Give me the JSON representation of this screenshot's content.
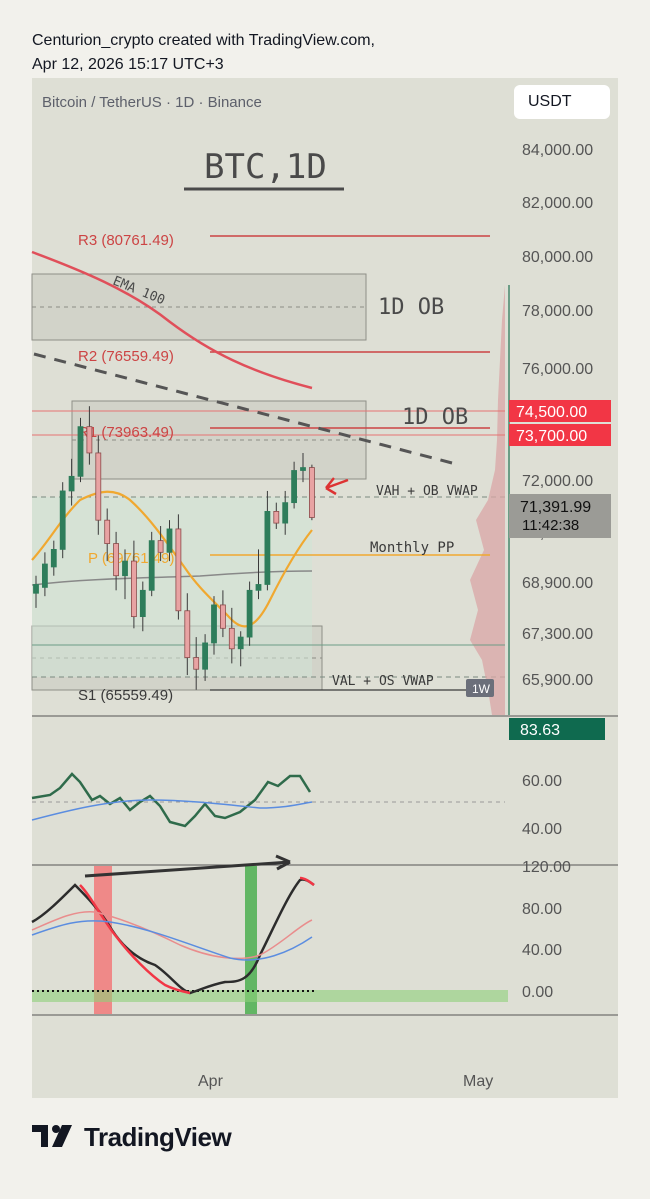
{
  "header": {
    "line1": "Centurion_crypto created with TradingView.com,",
    "line2": "Apr 12, 2026 15:17 UTC+3"
  },
  "symbol": {
    "title": "Bitcoin / TetherUS · 1D · Binance",
    "currency_button": "USDT"
  },
  "annotations": {
    "chart_title": "BTC,1D",
    "ob_upper": "1D OB",
    "ob_lower": "1D OB",
    "ema_label": "EMA 100",
    "vah_label": "VAH + OB VWAP",
    "monthly_pp": "Monthly PP",
    "val_label": "VAL + OS VWAP",
    "tf_badge": "1W"
  },
  "pivots": {
    "r3": "R3 (80761.49)",
    "r2": "R2 (76559.49)",
    "r1": "R1 (73963.49)",
    "p": "P (69761.49)",
    "s1": "S1 (65559.49)"
  },
  "price_labels": {
    "ob_top": "74,500.00",
    "ob_mid": "73,700.00",
    "last_price": "71,391.99",
    "countdown": "11:42:38",
    "rsi_value": "83.63"
  },
  "colors": {
    "bull": "#2e7d5b",
    "bear": "#e8a3a3",
    "ema100": "#e04f5a",
    "ema_short": "#f0a830",
    "pivot": "#cc4444",
    "accent_red": "#f23645",
    "accent_green": "#0f6a4f",
    "rsi": "#2f6b4b",
    "rsi_ma": "#5b8de0"
  },
  "axis": {
    "price_ticks": [
      "84,000.00",
      "82,000.00",
      "80,000.00",
      "78,000.00",
      "76,000.00",
      "72,000.00",
      "70,000.00",
      "68,900.00",
      "67,300.00",
      "65,900.00"
    ],
    "rsi_ticks": [
      "60.00",
      "40.00"
    ],
    "stoch_ticks": [
      "120.00",
      "80.00",
      "40.00",
      "0.00"
    ],
    "x_ticks": [
      "Apr",
      "May"
    ]
  },
  "footer": {
    "brand": "TradingView"
  },
  "chart_data": {
    "type": "candlestick",
    "title": "BTC,1D",
    "ylim": [
      65000,
      85000
    ],
    "candles": [
      {
        "o": 68800,
        "h": 69400,
        "l": 68300,
        "c": 69100
      },
      {
        "o": 69000,
        "h": 70200,
        "l": 68700,
        "c": 69800
      },
      {
        "o": 69700,
        "h": 70600,
        "l": 69400,
        "c": 70300
      },
      {
        "o": 70300,
        "h": 72600,
        "l": 70000,
        "c": 72300
      },
      {
        "o": 72300,
        "h": 73400,
        "l": 71800,
        "c": 72800
      },
      {
        "o": 72800,
        "h": 74800,
        "l": 72600,
        "c": 74500
      },
      {
        "o": 74500,
        "h": 75200,
        "l": 73200,
        "c": 73600
      },
      {
        "o": 73600,
        "h": 74200,
        "l": 70800,
        "c": 71300
      },
      {
        "o": 71300,
        "h": 71700,
        "l": 69900,
        "c": 70500
      },
      {
        "o": 70500,
        "h": 70900,
        "l": 68900,
        "c": 69400
      },
      {
        "o": 69400,
        "h": 70300,
        "l": 68600,
        "c": 69900
      },
      {
        "o": 69900,
        "h": 70600,
        "l": 67600,
        "c": 68000
      },
      {
        "o": 68000,
        "h": 69200,
        "l": 67500,
        "c": 68900
      },
      {
        "o": 68900,
        "h": 70900,
        "l": 68700,
        "c": 70600
      },
      {
        "o": 70600,
        "h": 71100,
        "l": 69900,
        "c": 70200
      },
      {
        "o": 70200,
        "h": 71300,
        "l": 69900,
        "c": 71000
      },
      {
        "o": 71000,
        "h": 71500,
        "l": 67900,
        "c": 68200
      },
      {
        "o": 68200,
        "h": 68800,
        "l": 66000,
        "c": 66600
      },
      {
        "o": 66600,
        "h": 67300,
        "l": 65500,
        "c": 66200
      },
      {
        "o": 66200,
        "h": 67400,
        "l": 65800,
        "c": 67100
      },
      {
        "o": 67100,
        "h": 68700,
        "l": 66700,
        "c": 68400
      },
      {
        "o": 68400,
        "h": 68900,
        "l": 67300,
        "c": 67600
      },
      {
        "o": 67600,
        "h": 68300,
        "l": 66400,
        "c": 66900
      },
      {
        "o": 66900,
        "h": 67500,
        "l": 66300,
        "c": 67300
      },
      {
        "o": 67300,
        "h": 69200,
        "l": 67000,
        "c": 68900
      },
      {
        "o": 68900,
        "h": 70300,
        "l": 68600,
        "c": 69100
      },
      {
        "o": 69100,
        "h": 72300,
        "l": 68900,
        "c": 71600
      },
      {
        "o": 71600,
        "h": 71900,
        "l": 71000,
        "c": 71200
      },
      {
        "o": 71200,
        "h": 72300,
        "l": 70800,
        "c": 71900
      },
      {
        "o": 71900,
        "h": 73300,
        "l": 71700,
        "c": 73000
      },
      {
        "o": 73000,
        "h": 73600,
        "l": 72600,
        "c": 73100
      },
      {
        "o": 73100,
        "h": 73200,
        "l": 71300,
        "c": 71392
      }
    ]
  }
}
